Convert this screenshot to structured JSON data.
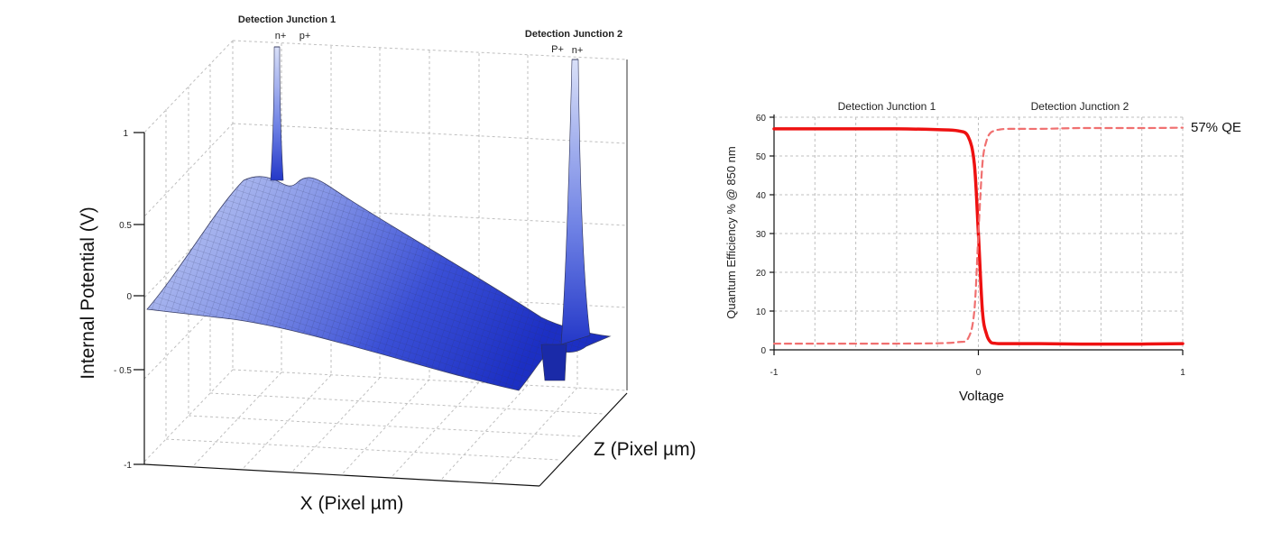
{
  "chart_data": [
    {
      "type": "surface3d",
      "title": "",
      "xlabel": "X (Pixel µm)",
      "zlabel": "Z (Pixel µm)",
      "ylabel": "Internal Potential (V)",
      "y_ticks": [
        "1",
        "0.5",
        "0",
        "- 0.5",
        "-1"
      ],
      "ylim": [
        -1,
        1
      ],
      "annotations": [
        {
          "text": "Detection Junction 1",
          "sub": [
            "n+",
            "p+"
          ]
        },
        {
          "text": "Detection Junction 2",
          "sub": [
            "P+",
            "n+"
          ]
        }
      ],
      "colors": {
        "surface_light": "#c9d3f5",
        "surface_dark": "#1c2fc4",
        "mesh": "#2a2f55"
      }
    },
    {
      "type": "line",
      "xlabel": "Voltage",
      "ylabel": "Quantum Efficiency % @ 850 nm",
      "xlim": [
        -1,
        1
      ],
      "ylim": [
        0,
        60
      ],
      "x_ticks": [
        "-1",
        "0",
        "1"
      ],
      "y_ticks": [
        "0",
        "10",
        "20",
        "30",
        "40",
        "50",
        "60"
      ],
      "region_labels": [
        "Detection Junction 1",
        "Detection Junction 2"
      ],
      "annotation": "57% QE",
      "series": [
        {
          "name": "Detection Junction 1",
          "style": "solid",
          "color": "#ee1111",
          "x": [
            -1,
            -0.8,
            -0.6,
            -0.4,
            -0.2,
            -0.1,
            -0.05,
            -0.02,
            0,
            0.02,
            0.04,
            0.06,
            0.08,
            0.1,
            0.15,
            0.3,
            0.5,
            0.8,
            1
          ],
          "y": [
            57,
            57,
            57,
            57,
            56.8,
            56.5,
            55,
            48,
            30,
            10,
            4,
            2,
            1.7,
            1.6,
            1.6,
            1.6,
            1.5,
            1.5,
            1.6
          ]
        },
        {
          "name": "Detection Junction 2",
          "style": "dashed",
          "color": "#f07070",
          "x": [
            -1,
            -0.8,
            -0.6,
            -0.4,
            -0.2,
            -0.1,
            -0.05,
            -0.02,
            0,
            0.02,
            0.04,
            0.06,
            0.08,
            0.1,
            0.15,
            0.3,
            0.5,
            0.8,
            1
          ],
          "y": [
            1.6,
            1.6,
            1.6,
            1.6,
            1.7,
            2,
            3,
            10,
            30,
            48,
            54,
            56,
            56.5,
            56.8,
            57,
            57,
            57.2,
            57.2,
            57.3
          ]
        }
      ]
    }
  ]
}
